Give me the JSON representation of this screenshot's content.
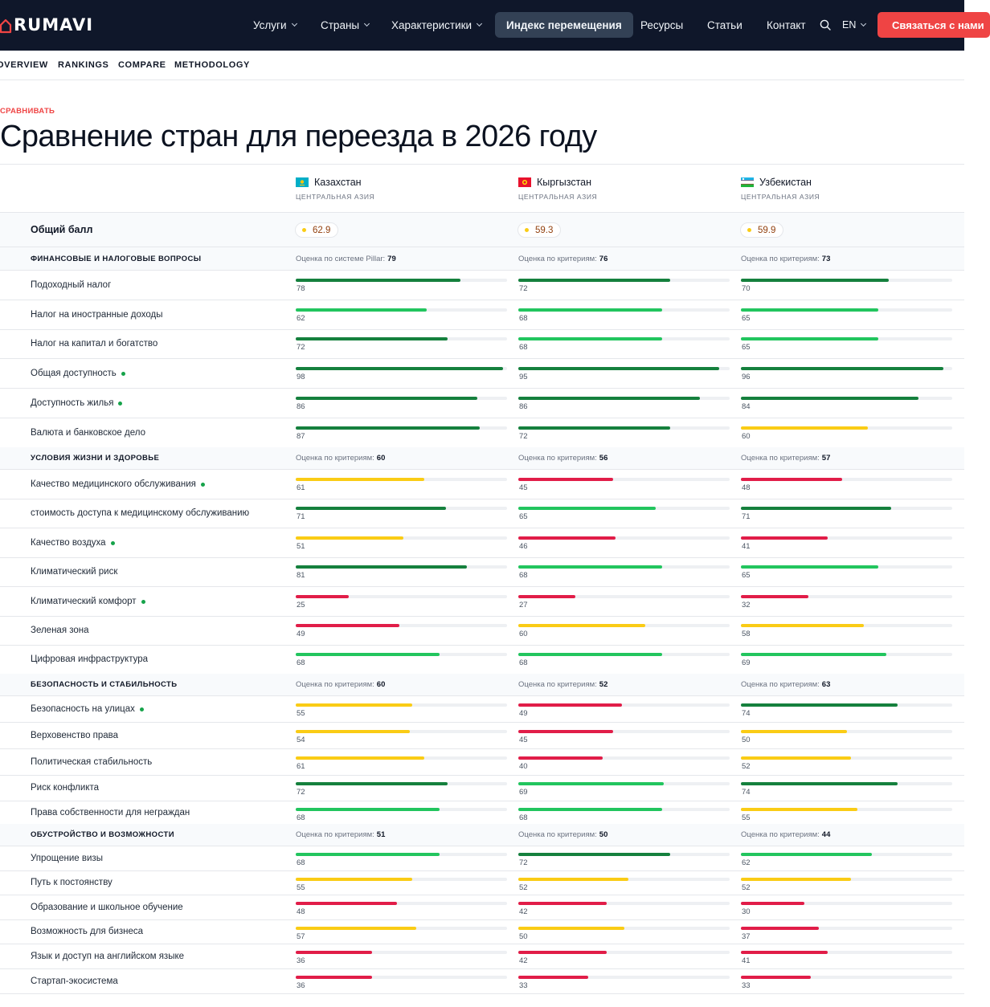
{
  "nav": {
    "logo_text": "RUMAVI",
    "items": [
      {
        "label": "Услуги",
        "dropdown": true
      },
      {
        "label": "Страны",
        "dropdown": true
      },
      {
        "label": "Характеристики",
        "dropdown": true
      },
      {
        "label": "Индекс перемещения",
        "dropdown": false,
        "active": true
      },
      {
        "label": "Ресурсы",
        "dropdown": false
      },
      {
        "label": "Статьи",
        "dropdown": false
      },
      {
        "label": "Контакт",
        "dropdown": false
      }
    ],
    "lang": "EN",
    "cta": "Связаться с нами"
  },
  "subnav": [
    "OVERVIEW",
    "RANKINGS",
    "COMPARE",
    "METHODOLOGY"
  ],
  "eyebrow": "СРАВНИВАТЬ",
  "title": "Сравнение стран для переезда в 2026 году",
  "colors": {
    "dark_green": "#15803d",
    "green": "#22c55e",
    "yellow": "#facc15",
    "red": "#e11d48"
  },
  "countries": [
    {
      "name": "Казахстан",
      "region": "ЦЕНТРАЛЬНАЯ АЗИЯ",
      "flag": "kz-flag-icon",
      "overall": "62.9"
    },
    {
      "name": "Кыргызстан",
      "region": "ЦЕНТРАЛЬНАЯ АЗИЯ",
      "flag": "kg-flag-icon",
      "overall": "59.3"
    },
    {
      "name": "Узбекистан",
      "region": "ЦЕНТРАЛЬНАЯ АЗИЯ",
      "flag": "uz-flag-icon",
      "overall": "59.9"
    }
  ],
  "overall_label": "Общий балл",
  "sections": [
    {
      "title": "ФИНАНСОВЫЕ И НАЛОГОВЫЕ ВОПРОСЫ",
      "scores": [
        {
          "label": "Оценка по системе Pillar:",
          "value": "79"
        },
        {
          "label": "Оценка по критериям:",
          "value": "76"
        },
        {
          "label": "Оценка по критериям:",
          "value": "73"
        }
      ],
      "metrics": [
        {
          "label": "Подоходный налог",
          "dot": false,
          "values": [
            78,
            72,
            70
          ]
        },
        {
          "label": "Налог на иностранные доходы",
          "dot": false,
          "values": [
            62,
            68,
            65
          ]
        },
        {
          "label": "Налог на капитал и богатство",
          "dot": false,
          "values": [
            72,
            68,
            65
          ]
        },
        {
          "label": "Общая доступность",
          "dot": true,
          "values": [
            98,
            95,
            96
          ]
        },
        {
          "label": "Доступность жилья",
          "dot": true,
          "values": [
            86,
            86,
            84
          ]
        },
        {
          "label": "Валюта и банковское дело",
          "dot": false,
          "values": [
            87,
            72,
            60
          ]
        }
      ]
    },
    {
      "title": "УСЛОВИЯ ЖИЗНИ И ЗДОРОВЬЕ",
      "scores": [
        {
          "label": "Оценка по критериям:",
          "value": "60"
        },
        {
          "label": "Оценка по критериям:",
          "value": "56"
        },
        {
          "label": "Оценка по критериям:",
          "value": "57"
        }
      ],
      "metrics": [
        {
          "label": "Качество медицинского обслуживания",
          "dot": true,
          "values": [
            61,
            45,
            48
          ]
        },
        {
          "label": "стоимость доступа к медицинскому обслуживанию",
          "dot": false,
          "values": [
            71,
            65,
            71
          ]
        },
        {
          "label": "Качество воздуха",
          "dot": true,
          "values": [
            51,
            46,
            41
          ]
        },
        {
          "label": "Климатический риск",
          "dot": false,
          "values": [
            81,
            68,
            65
          ]
        },
        {
          "label": "Климатический комфорт",
          "dot": true,
          "values": [
            25,
            27,
            32
          ]
        },
        {
          "label": "Зеленая зона",
          "dot": false,
          "values": [
            49,
            60,
            58
          ]
        },
        {
          "label": "Цифровая инфраструктура",
          "dot": false,
          "values": [
            68,
            68,
            69
          ]
        }
      ]
    },
    {
      "title": "БЕЗОПАСНОСТЬ И СТАБИЛЬНОСТЬ",
      "scores": [
        {
          "label": "Оценка по критериям:",
          "value": "60"
        },
        {
          "label": "Оценка по критериям:",
          "value": "52"
        },
        {
          "label": "Оценка по критериям:",
          "value": "63"
        }
      ],
      "metrics": [
        {
          "label": "Безопасность на улицах",
          "dot": true,
          "values": [
            55,
            49,
            74
          ]
        },
        {
          "label": "Верховенство права",
          "dot": false,
          "values": [
            54,
            45,
            50
          ]
        },
        {
          "label": "Политическая стабильность",
          "dot": false,
          "values": [
            61,
            40,
            52
          ]
        },
        {
          "label": "Риск конфликта",
          "dot": false,
          "values": [
            72,
            69,
            74
          ]
        },
        {
          "label": "Права собственности для неграждан",
          "dot": false,
          "values": [
            68,
            68,
            55
          ]
        }
      ]
    },
    {
      "title": "ОБУСТРОЙСТВО И ВОЗМОЖНОСТИ",
      "scores": [
        {
          "label": "Оценка по критериям:",
          "value": "51"
        },
        {
          "label": "Оценка по критериям:",
          "value": "50"
        },
        {
          "label": "Оценка по критериям:",
          "value": "44"
        }
      ],
      "metrics": [
        {
          "label": "Упрощение визы",
          "dot": false,
          "values": [
            68,
            72,
            62
          ]
        },
        {
          "label": "Путь к постоянству",
          "dot": false,
          "values": [
            55,
            52,
            52
          ]
        },
        {
          "label": "Образование и школьное обучение",
          "dot": false,
          "values": [
            48,
            42,
            30
          ]
        },
        {
          "label": "Возможность для бизнеса",
          "dot": false,
          "values": [
            57,
            50,
            37
          ]
        },
        {
          "label": "Язык и доступ на английском языке",
          "dot": false,
          "values": [
            36,
            42,
            41
          ]
        },
        {
          "label": "Стартап-экосистема",
          "dot": false,
          "values": [
            36,
            33,
            33
          ]
        }
      ]
    }
  ]
}
